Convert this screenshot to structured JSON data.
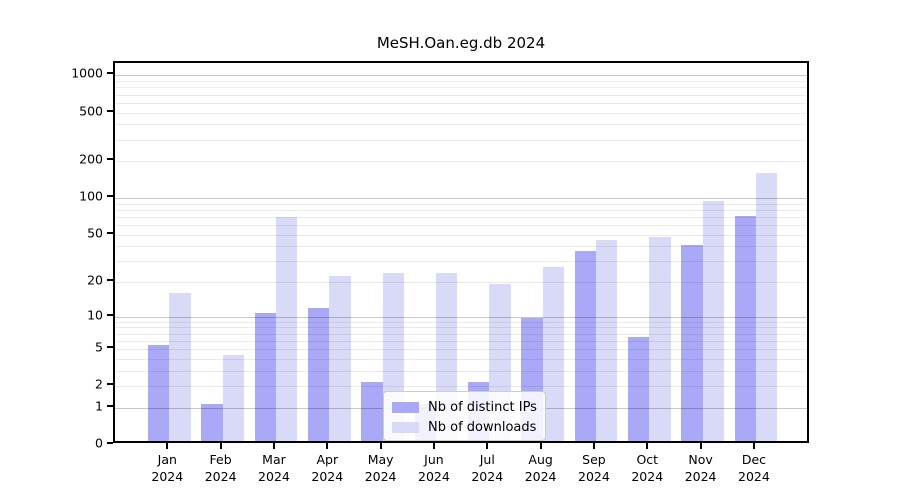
{
  "title": "MeSH.Oan.eg.db 2024",
  "chart_data": {
    "type": "bar",
    "title": "MeSH.Oan.eg.db 2024",
    "categories": [
      "Jan",
      "Feb",
      "Mar",
      "Apr",
      "May",
      "Jun",
      "Jul",
      "Aug",
      "Sep",
      "Oct",
      "Nov",
      "Dec"
    ],
    "category_year": "2024",
    "series": [
      {
        "name": "Nb of distinct IPs",
        "color": "#a9a9f7",
        "values": [
          5,
          1,
          10,
          11,
          2,
          1,
          2,
          9,
          34,
          6,
          38,
          66
        ]
      },
      {
        "name": "Nb of downloads",
        "color": "#d9d9f8",
        "values": [
          15,
          4,
          65,
          21,
          22,
          22,
          18,
          25,
          42,
          44,
          88,
          150
        ]
      }
    ],
    "xlabel": "",
    "ylabel": "",
    "yticks": [
      0,
      1,
      2,
      5,
      10,
      20,
      50,
      100,
      200,
      500,
      1000
    ],
    "ylim": [
      0,
      1000
    ],
    "scale": "log1p",
    "grid": "on",
    "legend_position": "bottom-center"
  }
}
